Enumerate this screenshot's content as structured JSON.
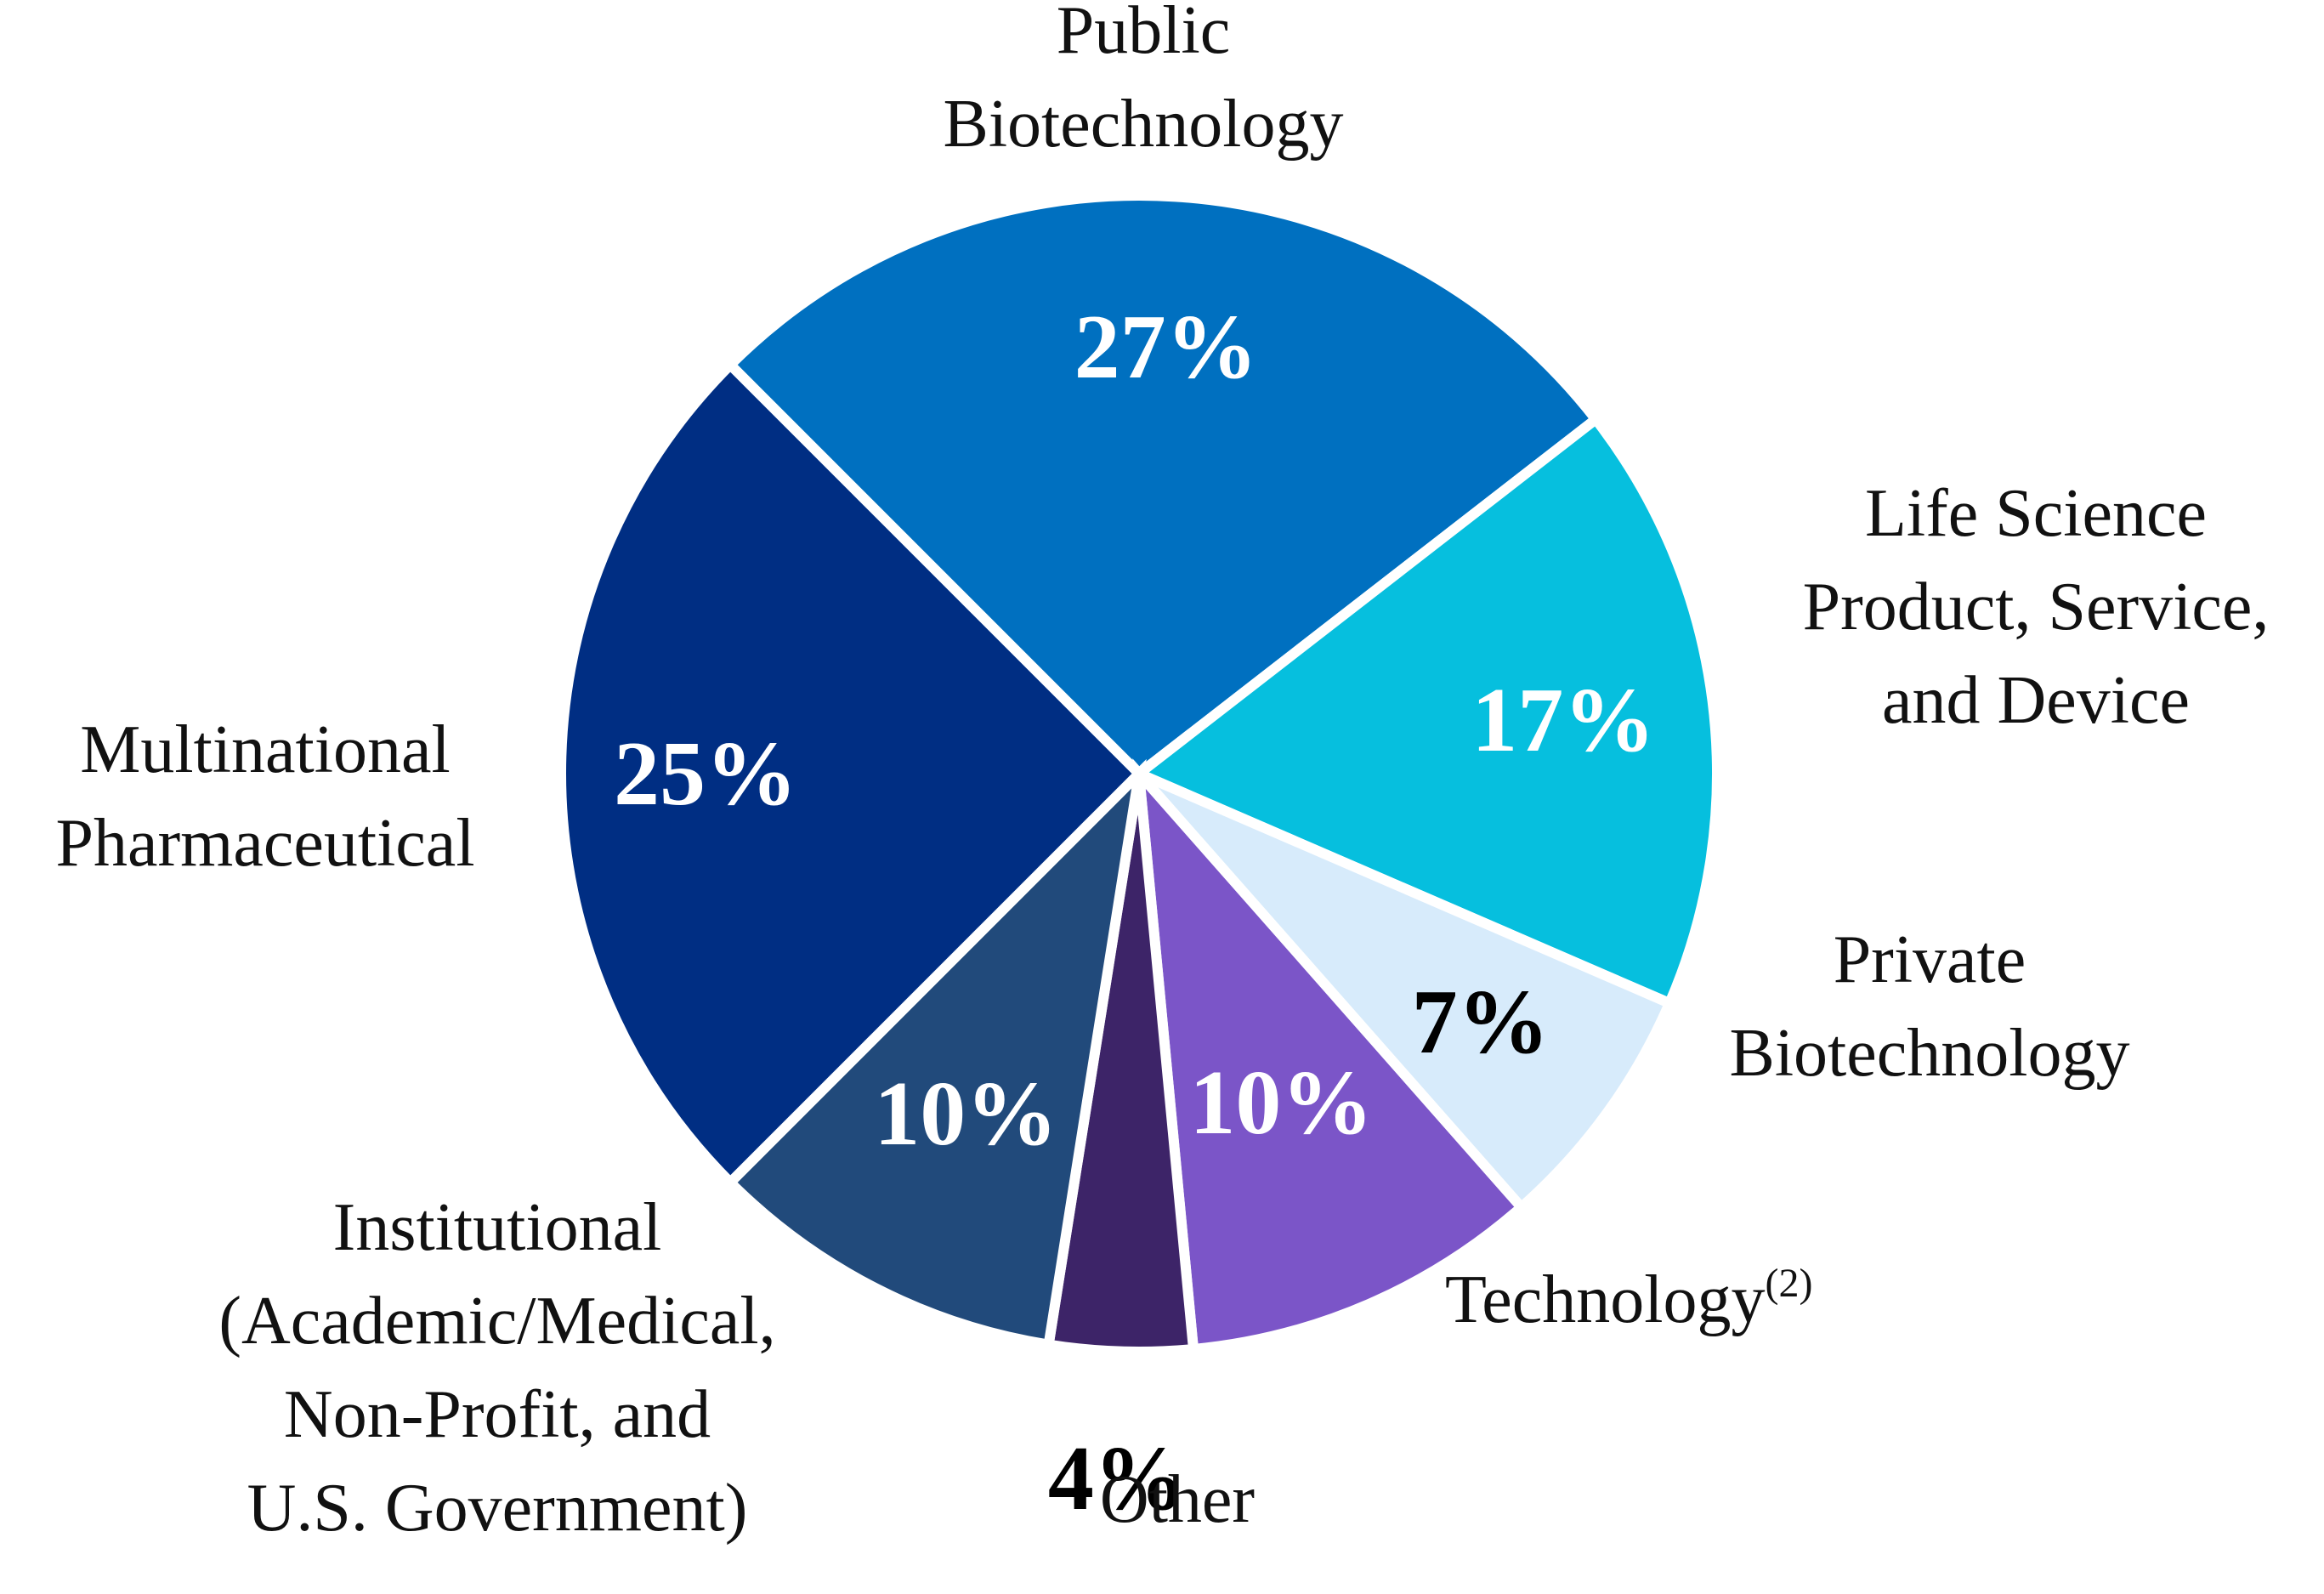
{
  "chart_data": {
    "type": "pie",
    "title": "",
    "slices": [
      {
        "name": "Public Biotechnology",
        "label_lines": [
          "Public",
          "Biotechnology"
        ],
        "value": 27,
        "value_label": "27%",
        "color": "#0070C0",
        "text_color": "#ffffff"
      },
      {
        "name": "Life Science Product, Service, and Device",
        "label_lines": [
          "Life Science",
          "Product, Service,",
          "and Device"
        ],
        "value": 17,
        "value_label": "17%",
        "color": "#06BFDE",
        "text_color": "#ffffff"
      },
      {
        "name": "Private Biotechnology",
        "label_lines": [
          "Private",
          "Biotechnology"
        ],
        "value": 7,
        "value_label": "7%",
        "color": "#D7EBFB",
        "text_color": "#000000"
      },
      {
        "name": "Technology",
        "label_lines": [
          "Technology"
        ],
        "label_superscript": "(2)",
        "value": 10,
        "value_label": "10%",
        "color": "#7B55C8",
        "text_color": "#ffffff"
      },
      {
        "name": "Other",
        "label_lines": [
          "Other"
        ],
        "value": 4,
        "value_label": "4%",
        "color": "#3D2468",
        "text_color": "#000000"
      },
      {
        "name": "Institutional (Academic/Medical, Non-Profit, and U.S. Government)",
        "label_lines": [
          "Institutional",
          "(Academic/Medical,",
          "Non-Profit, and",
          "U.S. Government)"
        ],
        "value": 10,
        "value_label": "10%",
        "color": "#214A7B",
        "text_color": "#ffffff"
      },
      {
        "name": "Multinational Pharmaceutical",
        "label_lines": [
          "Multinational",
          "Pharmaceutical"
        ],
        "value": 25,
        "value_label": "25%",
        "color": "#002E83",
        "text_color": "#ffffff"
      }
    ],
    "start_angle_deg": -45,
    "direction": "clockwise",
    "separator_color": "#ffffff"
  }
}
